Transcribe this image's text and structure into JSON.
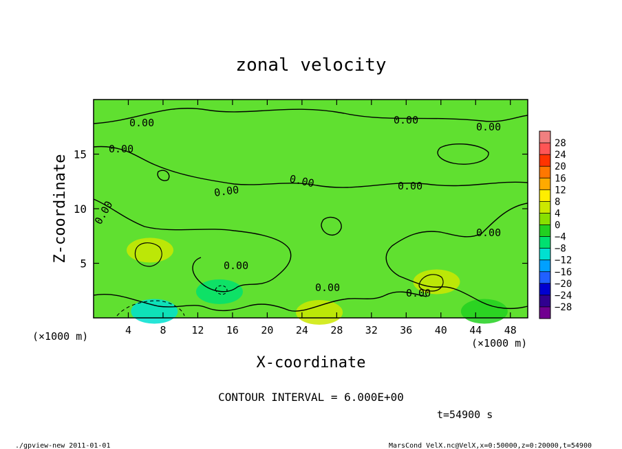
{
  "chart_data": {
    "type": "heatmap",
    "title": "zonal velocity",
    "xlabel": "X-coordinate",
    "ylabel": "Z-coordinate",
    "x_unit": "(×1000 m)",
    "y_unit": "(×1000 m)",
    "xlim": [
      0,
      50
    ],
    "ylim": [
      0,
      20
    ],
    "x_ticks": [
      "4",
      "8",
      "12",
      "16",
      "20",
      "24",
      "28",
      "32",
      "36",
      "40",
      "44",
      "48"
    ],
    "x_tick_values": [
      4,
      8,
      12,
      16,
      20,
      24,
      28,
      32,
      36,
      40,
      44,
      48
    ],
    "y_ticks": [
      "5",
      "10",
      "15"
    ],
    "y_tick_values": [
      5,
      10,
      15
    ],
    "colorbar": {
      "labels": [
        "28",
        "24",
        "20",
        "16",
        "12",
        "8",
        "4",
        "0",
        "−4",
        "−8",
        "−12",
        "−16",
        "−20",
        "−24",
        "−28"
      ],
      "levels": [
        28,
        24,
        20,
        16,
        12,
        8,
        4,
        0,
        -4,
        -8,
        -12,
        -16,
        -20,
        -24,
        -28
      ],
      "colors": [
        "#f08080",
        "#ff5555",
        "#ff3300",
        "#ff7700",
        "#ffaa00",
        "#ffee00",
        "#cce800",
        "#88e000",
        "#22d020",
        "#00e070",
        "#00e0d0",
        "#00a0ff",
        "#2060ff",
        "#0000d0",
        "#300090",
        "#700090"
      ]
    },
    "contour_label": "0.00",
    "contour_interval_text": "CONTOUR INTERVAL = 6.000E+00",
    "time_text": "t=54900 s",
    "blobs": [
      {
        "x": 6.5,
        "z": 6.2,
        "value": 6
      },
      {
        "x": 39.5,
        "z": 3.3,
        "value": 6
      },
      {
        "x": 7.0,
        "z": 0.6,
        "value": -9
      },
      {
        "x": 14.5,
        "z": 2.4,
        "value": -6
      },
      {
        "x": 26.0,
        "z": 0.5,
        "value": 4
      },
      {
        "x": 45.0,
        "z": 0.6,
        "value": -4
      }
    ]
  },
  "footer": {
    "left": "./gpview-new  2011-01-01",
    "right": "MarsCond_VelX.nc@VelX,x=0:50000,z=0:20000,t=54900"
  }
}
